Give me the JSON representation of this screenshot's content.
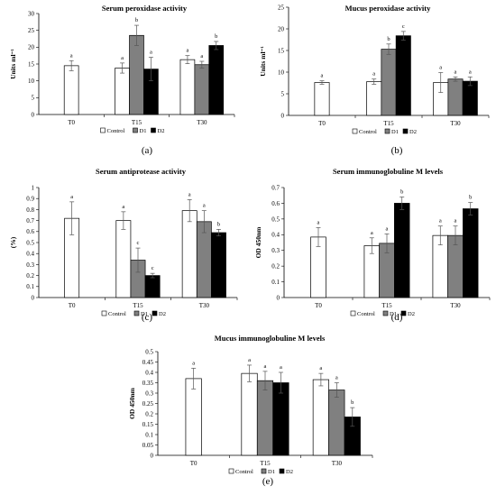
{
  "legend_entries": [
    "Control",
    "D1",
    "D2"
  ],
  "colors": {
    "Control": "#ffffff",
    "D1": "#808080",
    "D2": "#000000",
    "stroke": "#000000"
  },
  "chart_data": [
    {
      "panel": "(a)",
      "type": "bar",
      "title": "Serum peroxidase activity",
      "ylabel": "Units ml⁻¹",
      "categories": [
        "T0",
        "T15",
        "T30"
      ],
      "ylim": [
        0,
        30
      ],
      "yticks": [
        0,
        5,
        10,
        15,
        20,
        25,
        30
      ],
      "yticklabels": [
        "0",
        "5",
        "10",
        "15",
        "20",
        "25",
        "30"
      ],
      "grid": false,
      "legend_position": "bottom-center",
      "series": [
        {
          "name": "Control",
          "values": [
            14.5,
            13.8,
            16.3
          ],
          "errors": [
            1.5,
            1.5,
            1.2
          ],
          "labels": [
            "a",
            "a",
            "a"
          ]
        },
        {
          "name": "D1",
          "values": [
            null,
            23.5,
            14.8
          ],
          "errors": [
            null,
            3.0,
            1.0
          ],
          "labels": [
            "",
            "b",
            "a"
          ]
        },
        {
          "name": "D2",
          "values": [
            null,
            13.5,
            20.5
          ],
          "errors": [
            null,
            3.5,
            1.2
          ],
          "labels": [
            "",
            "a",
            "b"
          ]
        }
      ]
    },
    {
      "panel": "(b)",
      "type": "bar",
      "title": "Mucus peroxidase activity",
      "ylabel": "Units ml⁻¹",
      "categories": [
        "T0",
        "T15",
        "T30"
      ],
      "ylim": [
        0,
        25
      ],
      "yticks": [
        0,
        5,
        10,
        15,
        20,
        25
      ],
      "yticklabels": [
        "0",
        "5",
        "10",
        "15",
        "20",
        "25"
      ],
      "grid": false,
      "legend_position": "bottom-center",
      "series": [
        {
          "name": "Control",
          "values": [
            7.6,
            7.8,
            7.6
          ],
          "errors": [
            0.4,
            0.6,
            2.3
          ],
          "labels": [
            "a",
            "a",
            "a"
          ]
        },
        {
          "name": "D1",
          "values": [
            null,
            15.3,
            8.4
          ],
          "errors": [
            null,
            1.2,
            0.5
          ],
          "labels": [
            "",
            "b",
            "a"
          ]
        },
        {
          "name": "D2",
          "values": [
            null,
            18.4,
            7.9
          ],
          "errors": [
            null,
            1.0,
            1.0
          ],
          "labels": [
            "",
            "c",
            "a"
          ]
        }
      ]
    },
    {
      "panel": "(c)",
      "type": "bar",
      "title": "Serum antiprotease activity",
      "ylabel": "(%)",
      "categories": [
        "T0",
        "T15",
        "T30"
      ],
      "ylim": [
        0,
        1
      ],
      "yticks": [
        0,
        0.1,
        0.2,
        0.3,
        0.4,
        0.5,
        0.6,
        0.7,
        0.8,
        0.9,
        1
      ],
      "yticklabels": [
        "0",
        "0.1",
        "0.2",
        "0.3",
        "0.4",
        "0.5",
        "0.6",
        "0.7",
        "0.8",
        "0.9",
        "1"
      ],
      "grid": false,
      "legend_position": "bottom-center",
      "series": [
        {
          "name": "Control",
          "values": [
            0.72,
            0.7,
            0.79
          ],
          "errors": [
            0.15,
            0.08,
            0.1
          ],
          "labels": [
            "a",
            "a",
            "a"
          ]
        },
        {
          "name": "D1",
          "values": [
            null,
            0.34,
            0.69
          ],
          "errors": [
            null,
            0.11,
            0.1
          ],
          "labels": [
            "",
            "c",
            "a"
          ]
        },
        {
          "name": "D2",
          "values": [
            null,
            0.2,
            0.59
          ],
          "errors": [
            null,
            0.02,
            0.03
          ],
          "labels": [
            "",
            "c",
            "b"
          ]
        }
      ]
    },
    {
      "panel": "(d)",
      "type": "bar",
      "title": "Serum immunoglobuline  M levels",
      "ylabel": "OD 450nm",
      "categories": [
        "T0",
        "T15",
        "T30"
      ],
      "ylim": [
        0,
        0.7
      ],
      "yticks": [
        0,
        0.1,
        0.2,
        0.3,
        0.4,
        0.5,
        0.6,
        0.7
      ],
      "yticklabels": [
        "0",
        "0.1",
        "0.2",
        "0.3",
        "0.4",
        "0.5",
        "0.6",
        "0.7"
      ],
      "grid": false,
      "legend_position": "bottom-center",
      "series": [
        {
          "name": "Control",
          "values": [
            0.385,
            0.33,
            0.395
          ],
          "errors": [
            0.06,
            0.05,
            0.06
          ],
          "labels": [
            "a",
            "a",
            "a"
          ]
        },
        {
          "name": "D1",
          "values": [
            null,
            0.345,
            0.395
          ],
          "errors": [
            null,
            0.06,
            0.06
          ],
          "labels": [
            "",
            "a",
            "a"
          ]
        },
        {
          "name": "D2",
          "values": [
            null,
            0.6,
            0.565
          ],
          "errors": [
            null,
            0.04,
            0.04
          ],
          "labels": [
            "",
            "b",
            "b"
          ]
        }
      ]
    },
    {
      "panel": "(e)",
      "type": "bar",
      "title": "Mucus immunoglobuline  M levels",
      "ylabel": "OD 450nm",
      "categories": [
        "T0",
        "T15",
        "T30"
      ],
      "ylim": [
        0,
        0.5
      ],
      "yticks": [
        0,
        0.05,
        0.1,
        0.15,
        0.2,
        0.25,
        0.3,
        0.35,
        0.4,
        0.45,
        0.5
      ],
      "yticklabels": [
        "0",
        "0.05",
        "0.1",
        "0.15",
        "0.2",
        "0.25",
        "0.3",
        "0.35",
        "0.4",
        "0.45",
        "0.5"
      ],
      "grid": false,
      "legend_position": "bottom-center",
      "series": [
        {
          "name": "Control",
          "values": [
            0.37,
            0.395,
            0.365
          ],
          "errors": [
            0.05,
            0.04,
            0.03
          ],
          "labels": [
            "a",
            "a",
            "a"
          ]
        },
        {
          "name": "D1",
          "values": [
            null,
            0.36,
            0.315
          ],
          "errors": [
            null,
            0.045,
            0.035
          ],
          "labels": [
            "",
            "a",
            "a"
          ]
        },
        {
          "name": "D2",
          "values": [
            null,
            0.35,
            0.185
          ],
          "errors": [
            null,
            0.05,
            0.045
          ],
          "labels": [
            "",
            "a",
            "b"
          ]
        }
      ]
    }
  ]
}
